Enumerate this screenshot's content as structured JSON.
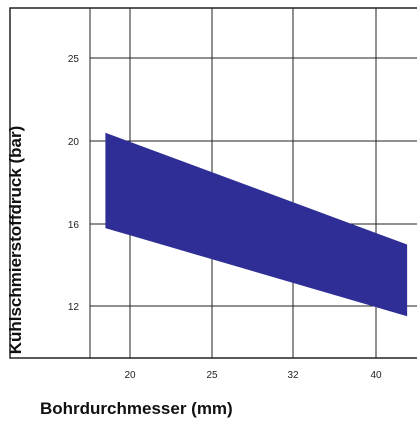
{
  "chart_data": {
    "type": "area",
    "title": "",
    "xlabel": "Bohrdurchmesser (mm)",
    "ylabel": "Kühlschmierstoffdruck (bar)",
    "x_ticks": [
      "20",
      "25",
      "32",
      "40"
    ],
    "y_ticks": [
      "12",
      "16",
      "20",
      "25"
    ],
    "grid": true,
    "band": {
      "name": "",
      "color": "#2e2e96",
      "x": [
        18.5,
        43
      ],
      "upper": [
        20.5,
        15
      ],
      "lower": [
        15.8,
        11.5
      ]
    }
  }
}
